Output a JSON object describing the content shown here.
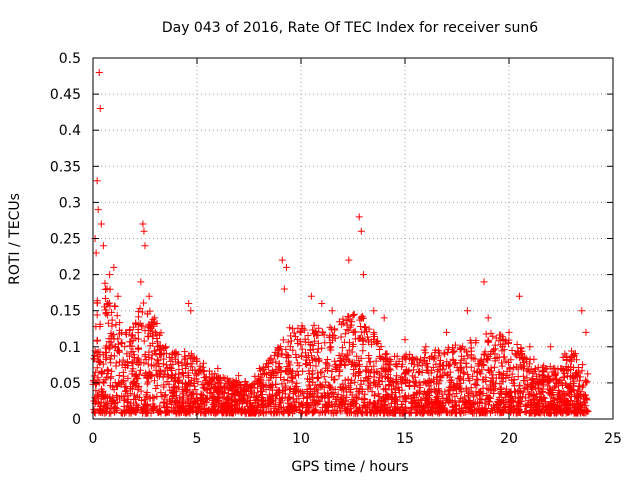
{
  "chart_data": {
    "type": "scatter",
    "title": "Day 043 of 2016, Rate Of TEC Index for receiver sun6",
    "xlabel": "GPS time / hours",
    "ylabel": "ROTI / TECUs",
    "xlim": [
      0,
      25
    ],
    "ylim": [
      0,
      0.5
    ],
    "x_ticks": [
      0,
      5,
      10,
      15,
      20,
      25
    ],
    "y_ticks": [
      0,
      0.05,
      0.1,
      0.15,
      0.2,
      0.25,
      0.3,
      0.35,
      0.4,
      0.45,
      0.5
    ],
    "grid": true,
    "marker": "+",
    "marker_color": "#ff0000",
    "data_extent_hours": [
      0,
      23.8
    ],
    "series": [
      {
        "x": [
          0.3,
          0.35,
          0.2,
          0.25,
          0.15,
          0.4,
          0.1,
          0.5,
          0.8,
          1.0,
          1.2,
          2.4,
          2.45,
          2.5,
          2.3,
          2.7,
          3.0,
          3.5,
          4.0,
          4.6,
          4.7,
          5.0,
          6.0,
          7.0,
          8.0,
          9.1,
          9.2,
          9.3,
          10.0,
          10.5,
          11.0,
          11.5,
          12.3,
          12.8,
          12.9,
          13.0,
          13.5,
          14.0,
          15.0,
          16.0,
          17.0,
          18.0,
          18.8,
          19.0,
          20.0,
          20.5,
          21.0,
          22.0,
          23.0,
          23.5,
          23.7
        ],
        "y": [
          0.48,
          0.43,
          0.33,
          0.29,
          0.23,
          0.27,
          0.25,
          0.24,
          0.2,
          0.21,
          0.17,
          0.27,
          0.26,
          0.24,
          0.19,
          0.17,
          0.12,
          0.1,
          0.09,
          0.16,
          0.15,
          0.08,
          0.07,
          0.06,
          0.07,
          0.22,
          0.18,
          0.21,
          0.12,
          0.17,
          0.16,
          0.15,
          0.22,
          0.28,
          0.26,
          0.2,
          0.15,
          0.14,
          0.11,
          0.1,
          0.12,
          0.15,
          0.19,
          0.14,
          0.12,
          0.17,
          0.1,
          0.1,
          0.08,
          0.15,
          0.12
        ]
      }
    ]
  }
}
